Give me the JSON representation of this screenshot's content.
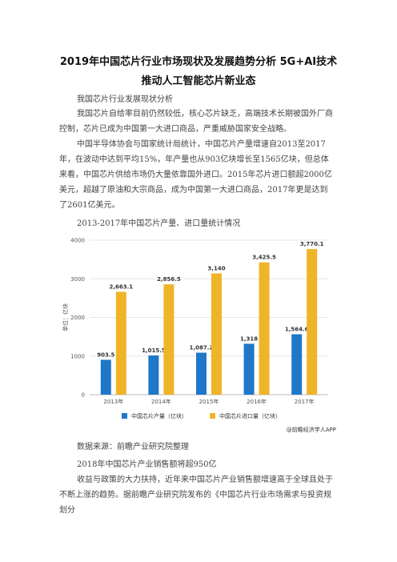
{
  "title_line1": "2019年中国芯片行业市场现状及发展趋势分析 5G+AI技术",
  "title_line2": "推动人工智能芯片新业态",
  "section1_heading": "我国芯片行业发展现状分析",
  "para1": "我国芯片自给率目前仍然较低，核心芯片缺乏，高端技术长期被国外厂商控制，芯片已成为中国第一大进口商品，严重威胁国家安全战略。",
  "para2": "中国半导体协会与国家统计局统计，中国芯片产量增速自2013至2017年，在波动中达到平均15%，年产量也从903亿块增长至1565亿块，但总体来看，中国芯片供给市场仍大量依靠国外进口。2015年芯片进口额超2000亿美元，超越了原油和大宗商品，成为中国第一大进口商品，2017年更是达到了2601亿美元。",
  "chart_heading": "2013-2017年中国芯片产量、进口量统计情况",
  "chart_data": {
    "type": "bar",
    "categories": [
      "2013年",
      "2014年",
      "2015年",
      "2016年",
      "2017年"
    ],
    "series": [
      {
        "name": "中国芯片产量（亿块）",
        "values": [
          903.5,
          1015.5,
          1087.2,
          1318,
          1564.6
        ],
        "labels": [
          "903.5",
          "1,015.5",
          "1,087.2",
          "1,318",
          "1,564.6"
        ],
        "color": "#1f77c7"
      },
      {
        "name": "中国芯片进口量（亿块）",
        "values": [
          2663.1,
          2856.5,
          3140,
          3425.5,
          3770.1
        ],
        "labels": [
          "2,663.1",
          "2,856.5",
          "3,140",
          "3,425.5",
          "3,770.1"
        ],
        "color": "#f0b429"
      }
    ],
    "ylabel": "单位：亿块",
    "ylim": [
      0,
      4000
    ],
    "yticks": [
      "0",
      "1000",
      "2000",
      "3000",
      "4000"
    ],
    "legend": "bottom",
    "grid": true,
    "source_mark": "@前瞻经济学人APP"
  },
  "source_note": "数据来源：前瞻产业研究院整理",
  "section2_heading": "2018年中国芯片产业销售额将超950亿",
  "para3": "收益与政策的大力扶持，近年来中国芯片产业销售额增速高于全球且处于不断上涨的趋势。据前瞻产业研究院发布的《中国芯片行业市场需求与投资规划分"
}
